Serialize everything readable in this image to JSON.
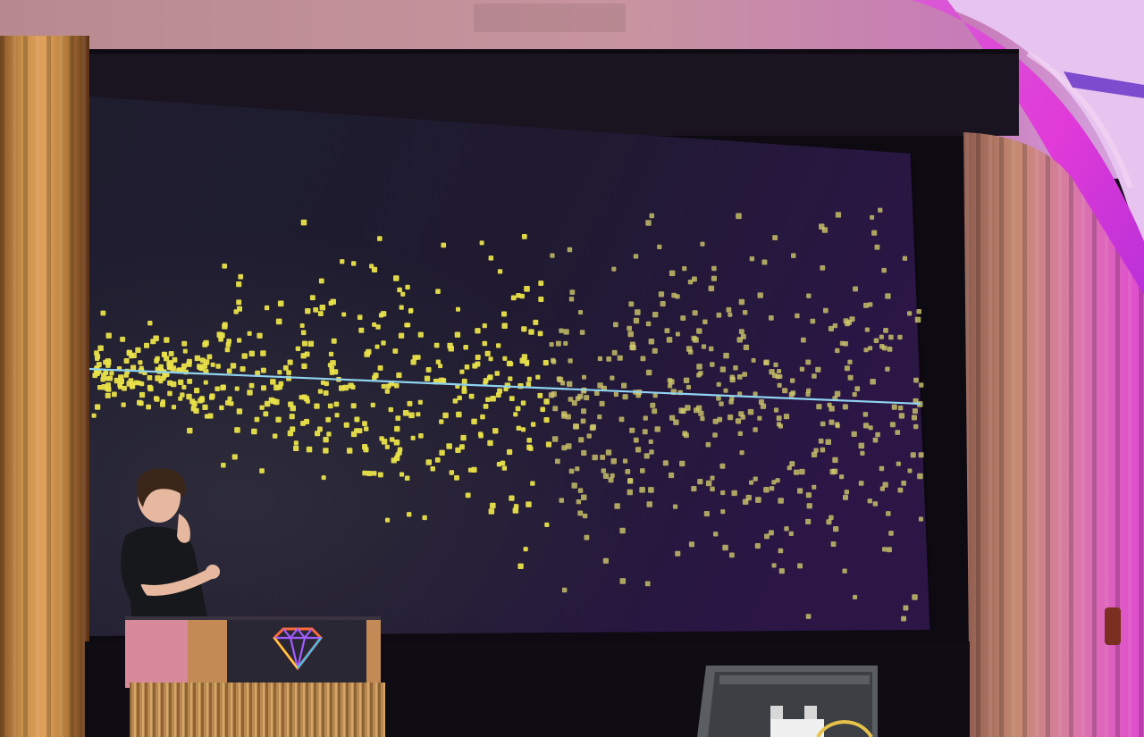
{
  "scene": {
    "description_free": true,
    "palette": {
      "wall_top": "#c7949f",
      "wall_magenta": "#e03ad8",
      "arch_violet": "#7b2fd0",
      "curtain_gold": "#c9904a",
      "curtain_dark": "#6b3b1f",
      "curtain_right_pink": "#d46ea0",
      "screen_dark": "#1d1a2c",
      "screen_right": "#2a1440",
      "dot_yellow": "#e9e24a",
      "dot_yellow_right": "#cfc86a",
      "trend_line": "#8fd3f0",
      "podium_panel": "#2a2735",
      "podium_wood": "#c48a55",
      "podium_skirt": "#b88a4f",
      "monitor_body": "#5a5d62"
    },
    "icons": [
      "diamond-logo-icon"
    ]
  },
  "chart_data": {
    "type": "scatter",
    "title": "",
    "xlabel": "",
    "ylabel": "",
    "grid": false,
    "legend": "none",
    "series": [
      {
        "values_note_free": true,
        "count": 900
      }
    ],
    "trend": {
      "type": "line",
      "slope": "slightly-decreasing"
    }
  }
}
